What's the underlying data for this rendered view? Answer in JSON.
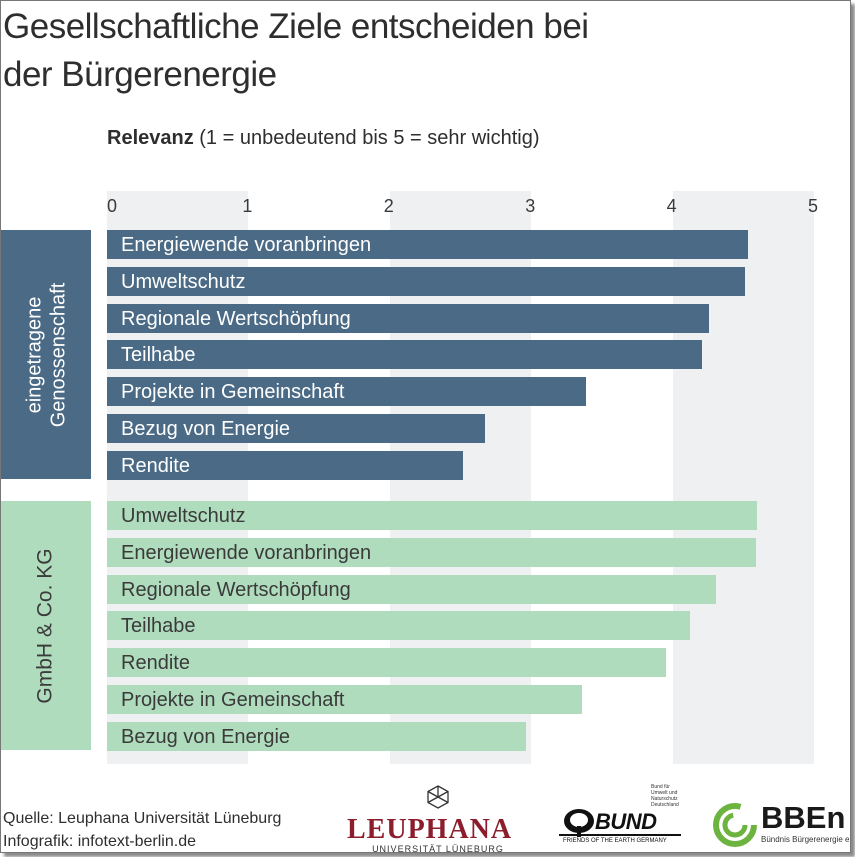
{
  "title_line1": "Gesellschaftliche Ziele entscheiden bei",
  "title_line2": "der Bürgerenergie",
  "subtitle_bold": "Relevanz",
  "subtitle_rest": " (1 = unbedeutend bis 5 = sehr wichtig)",
  "colors": {
    "group1": "#4a6a85",
    "group2": "#b0dcbe",
    "stripe": "#eef0f2"
  },
  "chart_data": {
    "type": "bar",
    "orientation": "horizontal",
    "title": "Gesellschaftliche Ziele entscheiden bei der Bürgerenergie",
    "xlabel": "Relevanz (1 = unbedeutend bis 5 = sehr wichtig)",
    "xlim": [
      0,
      5
    ],
    "ticks": [
      "0",
      "1",
      "2",
      "3",
      "4",
      "5"
    ],
    "groups": [
      {
        "name": "eingetragene Genossenschaft",
        "items": [
          {
            "label": "Energiewende voranbringen",
            "value": 4.53
          },
          {
            "label": "Umweltschutz",
            "value": 4.51
          },
          {
            "label": "Regionale Wertschöpfung",
            "value": 4.26
          },
          {
            "label": "Teilhabe",
            "value": 4.21
          },
          {
            "label": "Projekte in Gemeinschaft",
            "value": 3.39
          },
          {
            "label": "Bezug von Energie",
            "value": 2.67
          },
          {
            "label": "Rendite",
            "value": 2.52
          }
        ]
      },
      {
        "name": "GmbH & Co. KG",
        "items": [
          {
            "label": "Umweltschutz",
            "value": 4.6
          },
          {
            "label": "Energiewende voranbringen",
            "value": 4.59
          },
          {
            "label": "Regionale Wertschöpfung",
            "value": 4.31
          },
          {
            "label": "Teilhabe",
            "value": 4.12
          },
          {
            "label": "Rendite",
            "value": 3.95
          },
          {
            "label": "Projekte in Gemeinschaft",
            "value": 3.36
          },
          {
            "label": "Bezug von Energie",
            "value": 2.96
          }
        ]
      }
    ]
  },
  "footer": {
    "source": "Quelle: Leuphana Universität Lüneburg",
    "credit": "Infografik: infotext-berlin.de"
  },
  "logos": {
    "leuphana": "LEUPHANA",
    "leuphana_sub": "UNIVERSITÄT LÜNEBURG",
    "bund": "BUND",
    "bund_sub": "FRIENDS OF THE EARTH GERMANY",
    "bund_side": "Bund für Umwelt und Naturschutz Deutschland",
    "bben": "BBEn",
    "bben_sub": "Bündnis Bürgerenergie e.V."
  }
}
